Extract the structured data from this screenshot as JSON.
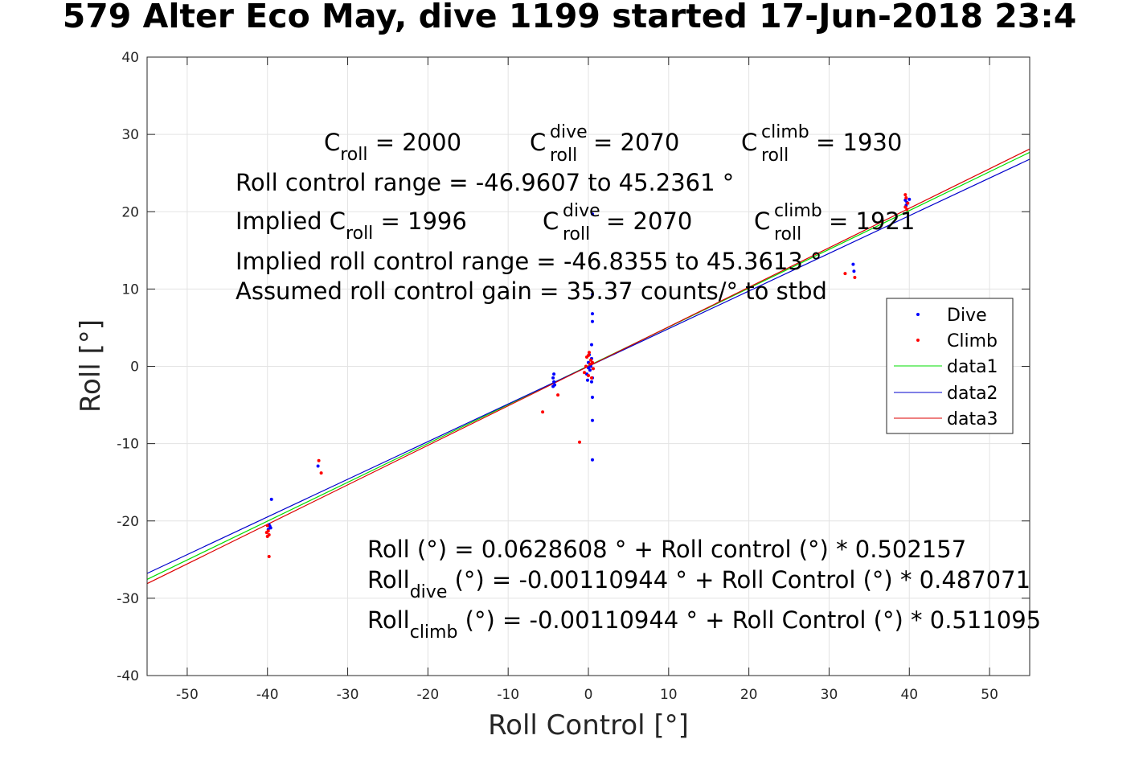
{
  "title": "579 Alter Eco May, dive 1199 started 17-Jun-2018 23:4",
  "chart_data": {
    "type": "scatter",
    "title": "579 Alter Eco May, dive 1199 started 17-Jun-2018 23:4",
    "xlabel": "Roll Control [°]",
    "ylabel": "Roll [°]",
    "xlim": [
      -55,
      55
    ],
    "ylim": [
      -40,
      40
    ],
    "xticks": [
      -50,
      -40,
      -30,
      -20,
      -10,
      0,
      10,
      20,
      30,
      40,
      50
    ],
    "yticks": [
      -40,
      -30,
      -20,
      -10,
      0,
      10,
      20,
      30,
      40
    ],
    "xtick_labels": [
      "-50",
      "-40",
      "-30",
      "-20",
      "-10",
      "0",
      "10",
      "20",
      "30",
      "40",
      "50"
    ],
    "ytick_labels": [
      "-40",
      "-30",
      "-20",
      "-10",
      "0",
      "10",
      "20",
      "30",
      "40"
    ],
    "grid": true,
    "legend_position": "right",
    "series": [
      {
        "name": "Dive",
        "kind": "points",
        "color": "#0000ff",
        "points": [
          [
            -39.8,
            -20.5
          ],
          [
            -39.7,
            -20.7
          ],
          [
            -39.6,
            -20.9
          ],
          [
            -39.9,
            -21.1
          ],
          [
            -39.5,
            -17.2
          ],
          [
            -33.7,
            -12.9
          ],
          [
            -4.3,
            -1.0
          ],
          [
            -4.4,
            -1.5
          ],
          [
            -4.3,
            -2.0
          ],
          [
            -4.2,
            -2.4
          ],
          [
            -4.4,
            -2.6
          ],
          [
            0.0,
            0.5
          ],
          [
            0.2,
            -0.5
          ],
          [
            0.4,
            1.0
          ],
          [
            -0.2,
            -1.0
          ],
          [
            0.3,
            0.0
          ],
          [
            0.1,
            1.5
          ],
          [
            0.4,
            -2.0
          ],
          [
            -0.1,
            -1.8
          ],
          [
            0.5,
            -1.5
          ],
          [
            0.0,
            -0.2
          ],
          [
            0.5,
            6.8
          ],
          [
            0.5,
            5.8
          ],
          [
            0.5,
            9.3
          ],
          [
            0.5,
            19.7
          ],
          [
            0.4,
            2.8
          ],
          [
            0.5,
            -4.0
          ],
          [
            0.5,
            -7.0
          ],
          [
            0.5,
            -12.1
          ],
          [
            33.0,
            13.2
          ],
          [
            33.1,
            12.3
          ],
          [
            39.5,
            21.5
          ],
          [
            39.7,
            21.2
          ],
          [
            40.0,
            21.6
          ],
          [
            39.6,
            20.8
          ]
        ]
      },
      {
        "name": "Climb",
        "kind": "points",
        "color": "#ff0000",
        "points": [
          [
            -40.0,
            -20.6
          ],
          [
            -39.9,
            -21.3
          ],
          [
            -40.1,
            -21.5
          ],
          [
            -40.0,
            -22.0
          ],
          [
            -39.8,
            -21.8
          ],
          [
            -39.8,
            -24.6
          ],
          [
            -33.6,
            -12.2
          ],
          [
            -33.3,
            -13.8
          ],
          [
            -3.8,
            -3.7
          ],
          [
            -5.7,
            -5.9
          ],
          [
            -1.1,
            -9.8
          ],
          [
            0.1,
            1.8
          ],
          [
            -0.2,
            1.2
          ],
          [
            0.3,
            0.8
          ],
          [
            0.5,
            0.5
          ],
          [
            0.2,
            0.3
          ],
          [
            -0.3,
            0.0
          ],
          [
            0.6,
            -0.3
          ],
          [
            -0.5,
            -0.8
          ],
          [
            0.0,
            -1.2
          ],
          [
            0.4,
            -1.5
          ],
          [
            0.0,
            1.4
          ],
          [
            32.0,
            12.0
          ],
          [
            33.2,
            11.5
          ],
          [
            39.5,
            22.2
          ],
          [
            39.6,
            21.8
          ],
          [
            39.8,
            21.1
          ],
          [
            39.5,
            20.6
          ],
          [
            39.7,
            20.3
          ]
        ]
      },
      {
        "name": "data1",
        "kind": "line",
        "color": "#00dd00",
        "x": [
          -55,
          55
        ],
        "y": [
          -27.56,
          27.68
        ]
      },
      {
        "name": "data2",
        "kind": "line",
        "color": "#0000cc",
        "x": [
          -55,
          55
        ],
        "y": [
          -26.79,
          26.79
        ]
      },
      {
        "name": "data3",
        "kind": "line",
        "color": "#dd0000",
        "x": [
          -55,
          55
        ],
        "y": [
          -28.11,
          28.11
        ]
      }
    ],
    "annotations": {
      "c_roll": {
        "base": "C",
        "sub": "roll",
        "value": " = 2000"
      },
      "c_dive": {
        "base": "C",
        "sup": "dive",
        "sub": "roll",
        "value": " = 2070"
      },
      "c_climb": {
        "base": "C",
        "sup": "climb",
        "sub": "roll",
        "value": " = 1930"
      },
      "range": "Roll control range = -46.9607 to 45.2361 °",
      "implied_c_roll": {
        "base": "Implied C",
        "sub": "roll",
        "value": " = 1996"
      },
      "implied_c_dive": {
        "base": "C",
        "sup": "dive",
        "sub": "roll",
        "value": " = 2070"
      },
      "implied_c_climb": {
        "base": "C",
        "sup": "climb",
        "sub": "roll",
        "value": " = 1921"
      },
      "implied_range": "Implied roll control range = -46.8355 to 45.3613 °",
      "gain": "Assumed roll control gain = 35.37 counts/° to stbd",
      "fit": "Roll (°) = 0.0628608 ° + Roll control (°) * 0.502157",
      "fit_dive": {
        "base": "Roll",
        "sub": "dive",
        "value": " (°) = -0.00110944 ° + Roll Control (°) * 0.487071"
      },
      "fit_climb": {
        "base": "Roll",
        "sub": "climb",
        "value": " (°) = -0.00110944 ° + Roll Control (°) * 0.511095"
      }
    },
    "legend": [
      "Dive",
      "Climb",
      "data1",
      "data2",
      "data3"
    ]
  }
}
